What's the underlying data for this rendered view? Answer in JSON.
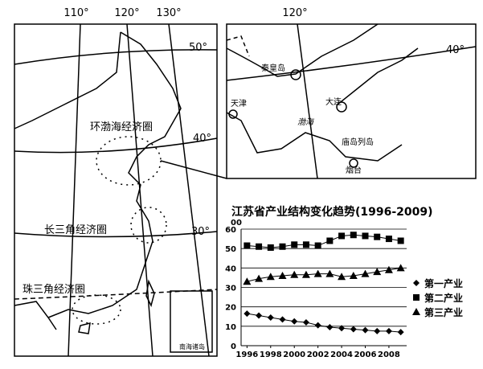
{
  "map": {
    "longitudes": [
      "110°",
      "120°",
      "130°"
    ],
    "latitudes": [
      "50°",
      "40°",
      "30°"
    ],
    "regions": [
      "环渤海经济圈",
      "长三角经济圈",
      "珠三角经济圈"
    ],
    "inset": "南海诸岛"
  },
  "detail_map": {
    "longitude": "120°",
    "latitude": "40°",
    "places": [
      "秦皇岛",
      "天津",
      "大连",
      "渤海",
      "庙岛列岛",
      "烟台"
    ]
  },
  "chart_data": {
    "type": "line",
    "title": "江苏省产业结构变化趋势(1996-2009)",
    "y_label": "00",
    "x": [
      1996,
      1997,
      1998,
      1999,
      2000,
      2001,
      2002,
      2003,
      2004,
      2005,
      2006,
      2007,
      2008,
      2009
    ],
    "xlim": [
      1995.5,
      2009.5
    ],
    "xticks": [
      1996,
      1998,
      2000,
      2002,
      2004,
      2006,
      2008
    ],
    "ylim": [
      0,
      60
    ],
    "yticks": [
      0,
      10,
      20,
      30,
      40,
      50,
      60
    ],
    "grid": true,
    "series": [
      {
        "name": "第一产业",
        "color": "#000000",
        "marker": "diamond",
        "values": [
          16.5,
          15.5,
          14.5,
          13.5,
          12.5,
          12,
          10.5,
          9.5,
          9,
          8.5,
          8,
          7.5,
          7.5,
          7
        ]
      },
      {
        "name": "第二产业",
        "color": "#000000",
        "marker": "square",
        "values": [
          51.5,
          51,
          50.5,
          51,
          52,
          52,
          51.5,
          54,
          56.5,
          57,
          56.5,
          56,
          55,
          54
        ]
      },
      {
        "name": "第三产业",
        "color": "#000000",
        "marker": "triangle",
        "values": [
          33,
          34.5,
          35.5,
          36,
          36.5,
          36.5,
          37,
          37,
          35.5,
          36,
          37,
          38,
          39,
          40
        ]
      }
    ]
  }
}
